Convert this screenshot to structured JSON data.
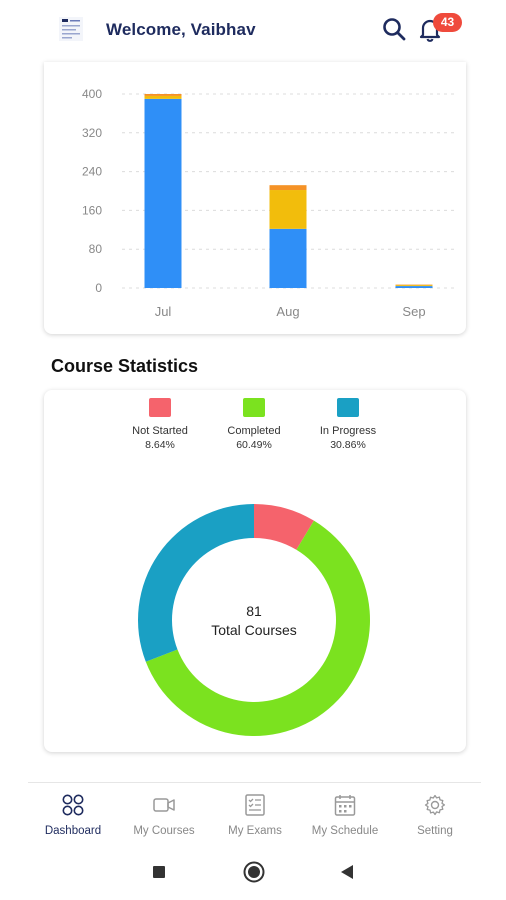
{
  "header": {
    "welcome": "Welcome, Vaibhav",
    "notification_count": "43",
    "icons": [
      "app-logo",
      "search-icon",
      "bell-icon"
    ]
  },
  "colors": {
    "primary": "#1e2b5e",
    "bar_blue": "#2f8ff7",
    "bar_yellow": "#f2bd0c",
    "bar_orange": "#f59226",
    "not_started": "#f5636c",
    "completed": "#7be21f",
    "in_progress": "#1aa0c4",
    "badge": "#ef4a3c"
  },
  "chart_data": [
    {
      "type": "bar",
      "stacked": true,
      "categories": [
        "Jul",
        "Aug",
        "Sep"
      ],
      "y_ticks": [
        "0",
        "80",
        "160",
        "240",
        "320",
        "400"
      ],
      "ylim": [
        0,
        400
      ],
      "grid": true,
      "series": [
        {
          "color": "#2f8ff7",
          "values": [
            390,
            122,
            4
          ]
        },
        {
          "color": "#f2bd0c",
          "values": [
            6,
            80,
            2
          ]
        },
        {
          "color": "#f59226",
          "values": [
            4,
            10,
            1
          ]
        }
      ]
    },
    {
      "type": "pie",
      "donut": true,
      "slices": [
        {
          "label": "Not Started",
          "percent_label": "8.64%",
          "value": 8.64,
          "color": "#f5636c"
        },
        {
          "label": "Completed",
          "percent_label": "60.49%",
          "value": 60.49,
          "color": "#7be21f"
        },
        {
          "label": "In Progress",
          "percent_label": "30.86%",
          "value": 30.86,
          "color": "#1aa0c4"
        }
      ],
      "center_value": "81",
      "center_label": "Total Courses"
    }
  ],
  "section_title": "Course Statistics",
  "bottom_nav": {
    "items": [
      {
        "label": "Dashboard",
        "icon": "dashboard-icon",
        "active": true
      },
      {
        "label": "My Courses",
        "icon": "video-camera-icon",
        "active": false
      },
      {
        "label": "My Exams",
        "icon": "exam-icon",
        "active": false
      },
      {
        "label": "My Schedule",
        "icon": "calendar-icon",
        "active": false
      },
      {
        "label": "Setting",
        "icon": "gear-icon",
        "active": false
      }
    ]
  },
  "system_nav": [
    "square-icon",
    "home-circle-icon",
    "back-triangle-icon"
  ]
}
